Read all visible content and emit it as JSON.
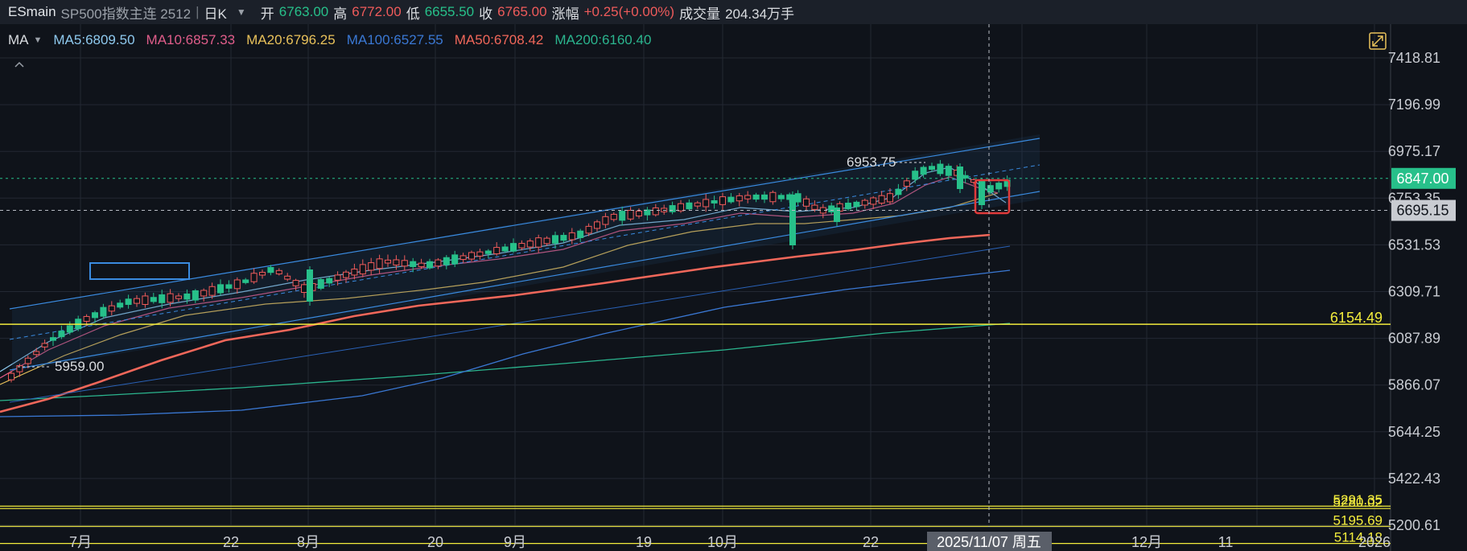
{
  "header": {
    "symbol": "ESmain",
    "name": "SP500指数主连 2512",
    "separator": "|",
    "period": "日K",
    "open_label": "开",
    "open": "6763.00",
    "high_label": "高",
    "high": "6772.00",
    "low_label": "低",
    "low": "6655.50",
    "close_label": "收",
    "close": "6765.00",
    "change_label": "涨幅",
    "change": "+0.25(+0.00%)",
    "volume_label": "成交量",
    "volume": "204.34万手"
  },
  "ma_legend": {
    "label": "MA",
    "items": [
      {
        "text": "MA5:6809.50",
        "color": "#8ec9ee"
      },
      {
        "text": "MA10:6857.33",
        "color": "#e05d8a"
      },
      {
        "text": "MA20:6796.25",
        "color": "#e8c15a"
      },
      {
        "text": "MA100:6527.55",
        "color": "#3a78d4"
      },
      {
        "text": "MA50:6708.42",
        "color": "#f0675a"
      },
      {
        "text": "MA200:6160.40",
        "color": "#2bb58e"
      }
    ]
  },
  "colors": {
    "up": "#ef5b5b",
    "down": "#27c08a",
    "hline": "#f3ec3c",
    "channel": "#3a8be0",
    "box": "#e03a3a"
  },
  "chart_data": {
    "type": "candlestick",
    "y_ticks": [
      "7418.81",
      "7196.99",
      "6975.17",
      "6753.35",
      "6531.53",
      "6309.71",
      "6087.89",
      "5866.07",
      "5644.25",
      "5422.43",
      "5200.61"
    ],
    "x_ticks": [
      "7月",
      "22",
      "8月",
      "20",
      "9月",
      "19",
      "10月",
      "22",
      "12月",
      "11",
      "2026"
    ],
    "crosshair_date": "2025/11/07 周五",
    "current_price_tag": "6847.00",
    "crosshair_price_tag": "6695.15",
    "horizontal_lines": [
      "6154.49",
      "5291.35",
      "5280.02",
      "5195.69",
      "5114.18"
    ],
    "annotations": [
      "6953.75",
      "5959.00"
    ]
  }
}
